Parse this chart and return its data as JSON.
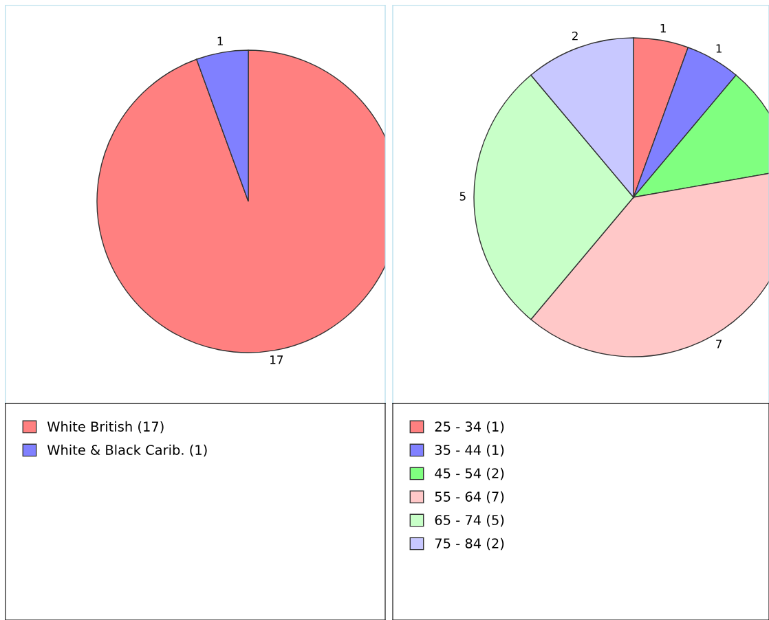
{
  "chart_data": [
    {
      "type": "pie",
      "categories": [
        "White British (17)",
        "White & Black Carib. (1)"
      ],
      "values": [
        17,
        1
      ],
      "colors": [
        "#ff8080",
        "#8080ff"
      ],
      "value_labels": [
        "17",
        "1"
      ],
      "legend": "bottom"
    },
    {
      "type": "pie",
      "categories": [
        "25 - 34 (1)",
        "35 - 44 (1)",
        "45 - 54 (2)",
        "55 - 64 (7)",
        "65 - 74 (5)",
        "75 - 84 (2)"
      ],
      "values": [
        1,
        1,
        2,
        7,
        5,
        2
      ],
      "colors": [
        "#ff8080",
        "#8080ff",
        "#80ff80",
        "#ffc8c8",
        "#c8ffc8",
        "#c8c8ff"
      ],
      "value_labels": [
        "1",
        "1",
        null,
        "7",
        "5",
        "2"
      ],
      "legend": "bottom"
    }
  ]
}
